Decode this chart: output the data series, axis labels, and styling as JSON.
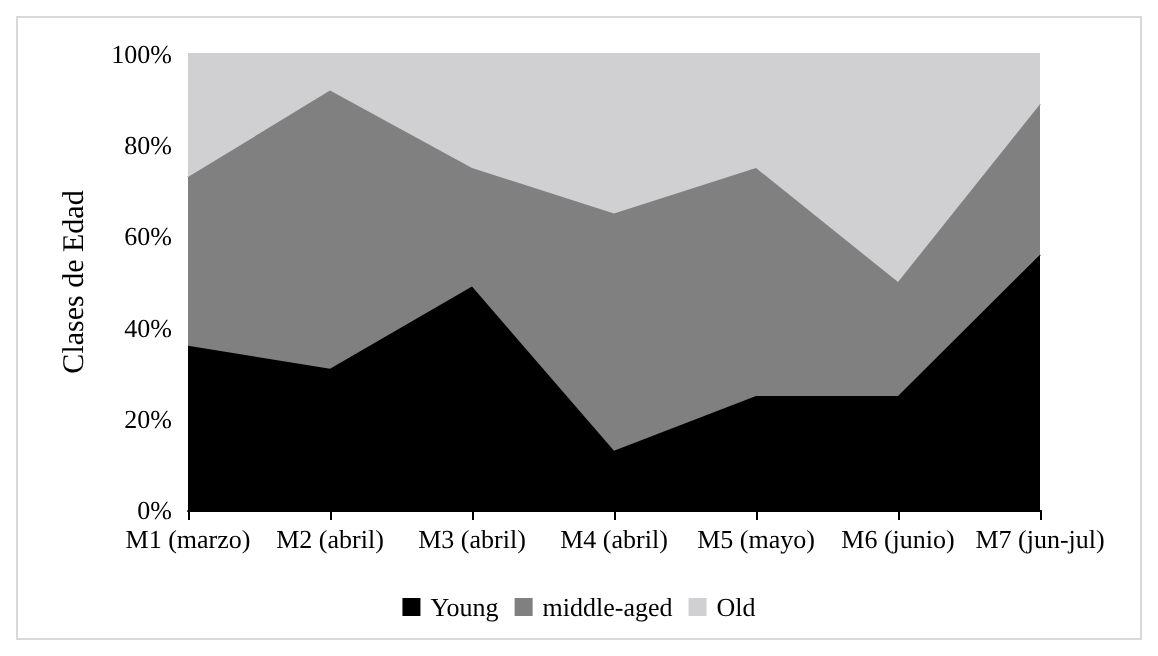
{
  "chart_data": {
    "type": "area",
    "stacked": true,
    "ylabel": "Clases de Edad",
    "categories": [
      "M1 (marzo)",
      "M2 (abril)",
      "M3 (abril)",
      "M4 (abril)",
      "M5 (mayo)",
      "M6 (junio)",
      "M7 (jun-jul)"
    ],
    "series": [
      {
        "name": "Young",
        "color": "#000000",
        "values": [
          36,
          31,
          49,
          13,
          25,
          25,
          56
        ]
      },
      {
        "name": "middle-aged",
        "color": "#808080",
        "values": [
          37,
          61,
          26,
          52,
          50,
          25,
          33
        ]
      },
      {
        "name": "Old",
        "color": "#d0cfd1",
        "values": [
          27,
          8,
          25,
          35,
          25,
          50,
          11
        ]
      }
    ],
    "ylim": [
      0,
      100
    ],
    "yticks": [
      {
        "value": 0,
        "label": "0%"
      },
      {
        "value": 20,
        "label": "20%"
      },
      {
        "value": 40,
        "label": "40%"
      },
      {
        "value": 60,
        "label": "60%"
      },
      {
        "value": 80,
        "label": "80%"
      },
      {
        "value": 100,
        "label": "100%"
      }
    ],
    "grid": false,
    "legend": "bottom"
  }
}
